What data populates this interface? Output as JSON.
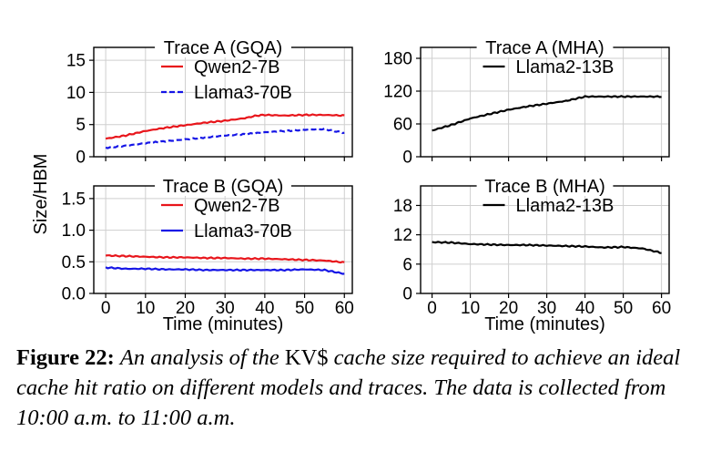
{
  "chart_data": [
    {
      "type": "line",
      "title": "Trace A (GQA)",
      "ylim": [
        0,
        17
      ],
      "yticks": [
        0,
        5,
        10,
        15
      ],
      "yticklabels": [
        "0",
        "5",
        "10",
        "15"
      ],
      "xlim": [
        -3,
        62
      ],
      "xticks": [
        0,
        10,
        20,
        30,
        40,
        50,
        60
      ],
      "grid": true,
      "legend_position": "top-center",
      "series": [
        {
          "name": "Qwen2-7B",
          "color": "#e8151b",
          "dash": "solid",
          "x": [
            0,
            5,
            10,
            15,
            20,
            25,
            30,
            35,
            38,
            40,
            45,
            50,
            55,
            60
          ],
          "values": [
            2.8,
            3.3,
            4.0,
            4.5,
            4.9,
            5.3,
            5.6,
            6.0,
            6.4,
            6.5,
            6.4,
            6.5,
            6.5,
            6.4
          ]
        },
        {
          "name": "Llama3-70B",
          "color": "#1515e6",
          "dash": "dashed",
          "x": [
            0,
            5,
            10,
            15,
            20,
            25,
            30,
            35,
            40,
            45,
            50,
            55,
            60
          ],
          "values": [
            1.4,
            1.7,
            2.1,
            2.4,
            2.7,
            3.0,
            3.3,
            3.5,
            3.8,
            4.0,
            4.2,
            4.3,
            3.7
          ]
        }
      ]
    },
    {
      "type": "line",
      "title": "Trace A (MHA)",
      "ylim": [
        0,
        200
      ],
      "yticks": [
        0,
        60,
        120,
        180
      ],
      "yticklabels": [
        "0",
        "60",
        "120",
        "180"
      ],
      "xlim": [
        -3,
        62
      ],
      "xticks": [
        0,
        10,
        20,
        30,
        40,
        50,
        60
      ],
      "grid": true,
      "legend_position": "top-center",
      "series": [
        {
          "name": "Llama2-13B",
          "color": "#000000",
          "dash": "solid",
          "x": [
            0,
            5,
            10,
            15,
            20,
            25,
            30,
            35,
            40,
            45,
            50,
            55,
            60
          ],
          "values": [
            48,
            58,
            70,
            78,
            86,
            92,
            97,
            102,
            110,
            110,
            110,
            110,
            110
          ]
        }
      ]
    },
    {
      "type": "line",
      "title": "Trace B (GQA)",
      "ylim": [
        0,
        1.7
      ],
      "yticks": [
        0.0,
        0.5,
        1.0,
        1.5
      ],
      "yticklabels": [
        "0.0",
        "0.5",
        "1.0",
        "1.5"
      ],
      "xlim": [
        -3,
        62
      ],
      "xticks": [
        0,
        10,
        20,
        30,
        40,
        50,
        60
      ],
      "xticklabels": [
        "0",
        "10",
        "20",
        "30",
        "40",
        "50",
        "60"
      ],
      "xlabel": "Time (minutes)",
      "grid": true,
      "legend_position": "top-center",
      "series": [
        {
          "name": "Qwen2-7B",
          "color": "#e8151b",
          "dash": "solid",
          "x": [
            0,
            5,
            10,
            15,
            20,
            25,
            30,
            35,
            40,
            45,
            50,
            55,
            60
          ],
          "values": [
            0.6,
            0.59,
            0.58,
            0.57,
            0.57,
            0.56,
            0.56,
            0.55,
            0.55,
            0.54,
            0.53,
            0.52,
            0.49
          ]
        },
        {
          "name": "Llama3-70B",
          "color": "#1515e6",
          "dash": "solid",
          "x": [
            0,
            5,
            10,
            15,
            20,
            25,
            30,
            35,
            40,
            45,
            50,
            55,
            60
          ],
          "values": [
            0.41,
            0.39,
            0.39,
            0.38,
            0.38,
            0.37,
            0.37,
            0.37,
            0.37,
            0.37,
            0.38,
            0.37,
            0.31
          ]
        }
      ]
    },
    {
      "type": "line",
      "title": "Trace B (MHA)",
      "ylim": [
        0,
        22
      ],
      "yticks": [
        0,
        6,
        12,
        18
      ],
      "yticklabels": [
        "0",
        "6",
        "12",
        "18"
      ],
      "xlim": [
        -3,
        62
      ],
      "xticks": [
        0,
        10,
        20,
        30,
        40,
        50,
        60
      ],
      "xticklabels": [
        "0",
        "10",
        "20",
        "30",
        "40",
        "50",
        "60"
      ],
      "xlabel": "Time (minutes)",
      "grid": true,
      "legend_position": "top-center",
      "series": [
        {
          "name": "Llama2-13B",
          "color": "#000000",
          "dash": "solid",
          "x": [
            0,
            5,
            10,
            15,
            20,
            25,
            30,
            35,
            40,
            45,
            50,
            55,
            60
          ],
          "values": [
            10.5,
            10.4,
            10.1,
            10.0,
            9.9,
            9.9,
            9.8,
            9.7,
            9.6,
            9.4,
            9.5,
            9.2,
            8.3
          ]
        }
      ]
    }
  ],
  "figure": {
    "shared_ylabel": "Size/HBM"
  },
  "caption": {
    "label": "Figure 22:",
    "text_1": "An analysis of the",
    "kv": "KV$",
    "text_2": "cache size required to achieve an ideal cache hit ratio on different models and traces. The data is collected from 10:00 a.m. to 11:00 a.m."
  }
}
